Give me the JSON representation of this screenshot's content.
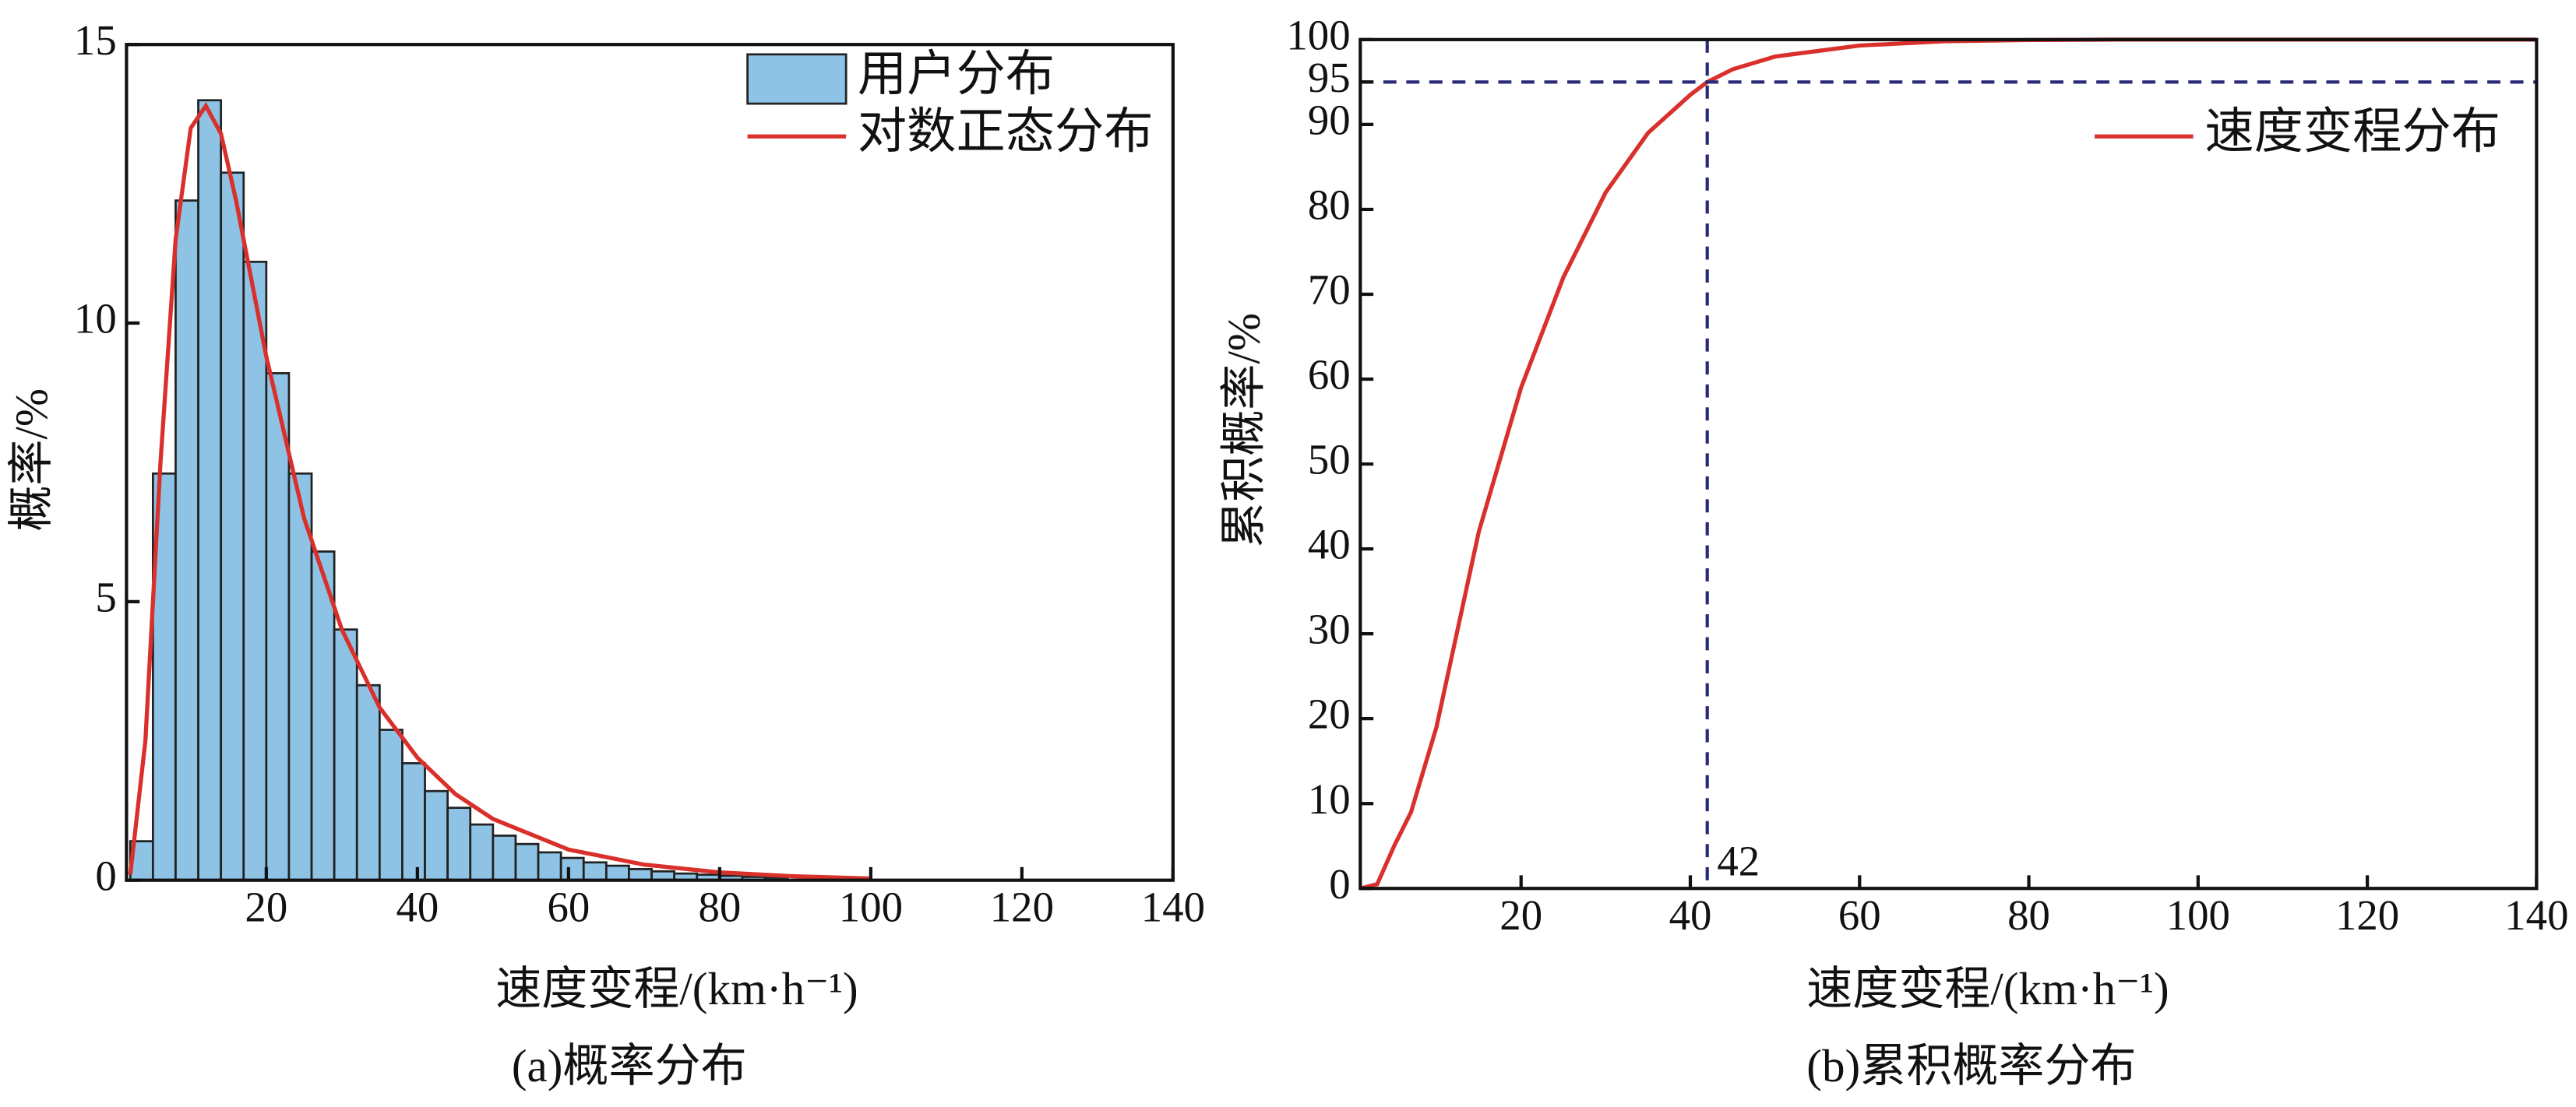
{
  "chart_data": [
    {
      "type": "histogram",
      "caption": "(a)概率分布",
      "x_label": "速度变程/(km·h⁻¹)",
      "y_label": "概率/%",
      "xlim": [
        1.5,
        140
      ],
      "xticks": [
        20,
        40,
        60,
        80,
        100,
        120,
        140
      ],
      "ylim": [
        0,
        15
      ],
      "yticks": [
        0,
        5,
        10,
        15
      ],
      "legend": "upper right",
      "series": [
        {
          "name": "用户分布",
          "type": "histogram",
          "color": "#8ec3e6",
          "bins": [
            2,
            5,
            8,
            11,
            14,
            17,
            20,
            23,
            26,
            29,
            32,
            35,
            38,
            41,
            44,
            47,
            50,
            53,
            56,
            59,
            62,
            65,
            68,
            71,
            74,
            77,
            80,
            83,
            86,
            89
          ],
          "values": [
            0.7,
            7.3,
            12.2,
            14.0,
            12.7,
            11.1,
            9.1,
            7.3,
            5.9,
            4.5,
            3.5,
            2.7,
            2.1,
            1.6,
            1.3,
            1.0,
            0.8,
            0.65,
            0.5,
            0.4,
            0.32,
            0.26,
            0.2,
            0.16,
            0.12,
            0.1,
            0.08,
            0.06,
            0.05
          ]
        },
        {
          "name": "对数正态分布",
          "type": "line",
          "color": "#d9302c",
          "x": [
            2,
            4,
            6,
            8,
            10,
            12,
            14,
            16,
            18,
            20,
            25,
            30,
            35,
            40,
            45,
            50,
            60,
            70,
            80,
            90,
            100
          ],
          "values": [
            0.1,
            2.5,
            7.5,
            11.5,
            13.5,
            13.9,
            13.4,
            12.2,
            10.8,
            9.4,
            6.5,
            4.5,
            3.1,
            2.2,
            1.55,
            1.1,
            0.55,
            0.28,
            0.14,
            0.07,
            0.03
          ]
        }
      ]
    },
    {
      "type": "line",
      "caption": "(b)累积概率分布",
      "x_label": "速度变程/(km·h⁻¹)",
      "y_label": "累积概率/%",
      "xlim": [
        1,
        140
      ],
      "xticks": [
        20,
        40,
        60,
        80,
        100,
        120,
        140
      ],
      "ylim": [
        0,
        100
      ],
      "yticks": [
        0,
        10,
        20,
        30,
        40,
        50,
        60,
        70,
        80,
        90,
        95,
        100
      ],
      "legend": "upper right",
      "reference_lines": [
        {
          "axis": "x",
          "value": 42,
          "label": "42",
          "color": "#2b2b7a"
        },
        {
          "axis": "y",
          "value": 95,
          "color": "#2b2b7a"
        }
      ],
      "series": [
        {
          "name": "速度变程分布",
          "type": "line",
          "color": "#d9302c",
          "x": [
            1,
            3,
            5,
            7,
            10,
            15,
            20,
            25,
            30,
            35,
            40,
            42,
            45,
            50,
            60,
            70,
            80,
            90,
            100,
            140
          ],
          "values": [
            0,
            0.5,
            5,
            9,
            19,
            42,
            59,
            72,
            82,
            89,
            93.5,
            95,
            96.5,
            98,
            99.3,
            99.8,
            99.95,
            100,
            100,
            100
          ]
        }
      ]
    }
  ]
}
